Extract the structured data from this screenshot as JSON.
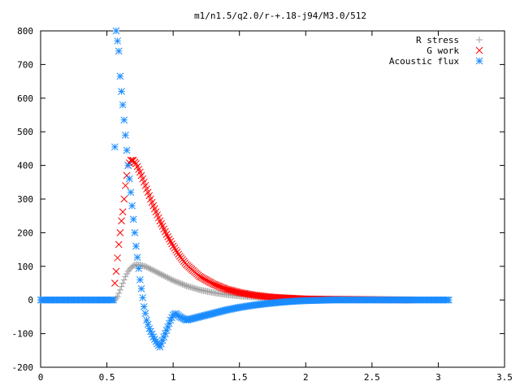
{
  "chart_data": {
    "type": "scatter",
    "title": "m1/n1.5/q2.0/r-+.18-j94/M3.0/512",
    "xlabel": "",
    "ylabel": "",
    "xlim": [
      0,
      3.5
    ],
    "ylim": [
      -200,
      800
    ],
    "x_ticks": [
      "0",
      "0.5",
      "1",
      "1.5",
      "2",
      "2.5",
      "3",
      "3.5"
    ],
    "y_ticks": [
      "-200",
      "-100",
      "0",
      "100",
      "200",
      "300",
      "400",
      "500",
      "600",
      "700",
      "800"
    ],
    "grid": false,
    "legend_position": "top-right",
    "series": [
      {
        "name": "R stress",
        "marker": "plus",
        "color": "#a0a0a0",
        "x": [
          0.0,
          0.3,
          0.56,
          0.58,
          0.6,
          0.62,
          0.64,
          0.66,
          0.68,
          0.7,
          0.72,
          0.75,
          0.8,
          0.85,
          0.9,
          0.95,
          1.0,
          1.1,
          1.2,
          1.3,
          1.4,
          1.5,
          1.6,
          1.7,
          1.8,
          2.0,
          2.2,
          2.5,
          2.8
        ],
        "y": [
          0,
          0,
          0,
          10,
          30,
          50,
          70,
          85,
          95,
          102,
          105,
          104,
          98,
          88,
          78,
          68,
          58,
          42,
          30,
          22,
          16,
          12,
          9,
          6,
          4,
          2,
          1,
          0.5,
          0
        ]
      },
      {
        "name": "G work",
        "marker": "cross",
        "color": "#ff0000",
        "x": [
          0.56,
          0.57,
          0.58,
          0.59,
          0.6,
          0.61,
          0.62,
          0.63,
          0.64,
          0.65,
          0.66,
          0.68,
          0.7,
          0.72,
          0.75,
          0.8,
          0.85,
          0.9,
          0.95,
          1.0,
          1.05,
          1.1,
          1.2,
          1.3,
          1.4,
          1.5,
          1.6,
          1.7,
          1.8,
          2.0,
          2.2,
          2.5,
          2.8
        ],
        "y": [
          50,
          85,
          125,
          165,
          200,
          235,
          262,
          300,
          340,
          370,
          400,
          415,
          415,
          405,
          380,
          330,
          280,
          235,
          195,
          160,
          130,
          105,
          70,
          48,
          32,
          22,
          15,
          10,
          7,
          3,
          2,
          1,
          0
        ]
      },
      {
        "name": "Acoustic flux",
        "marker": "star",
        "color": "#1a8cff",
        "x": [
          0.0,
          0.3,
          0.55,
          0.56,
          0.57,
          0.58,
          0.59,
          0.6,
          0.61,
          0.62,
          0.63,
          0.64,
          0.65,
          0.66,
          0.67,
          0.68,
          0.7,
          0.72,
          0.75,
          0.78,
          0.8,
          0.82,
          0.85,
          0.88,
          0.9,
          0.92,
          0.95,
          0.98,
          1.0,
          1.02,
          1.05,
          1.1,
          1.2,
          1.3,
          1.4,
          1.5,
          1.6,
          1.7,
          1.8,
          1.9,
          2.0,
          2.2,
          2.4,
          2.6,
          2.8,
          3.0,
          3.08
        ],
        "y": [
          0,
          0,
          0,
          455,
          800,
          770,
          740,
          665,
          620,
          580,
          535,
          490,
          445,
          400,
          360,
          320,
          240,
          160,
          60,
          -20,
          -60,
          -85,
          -110,
          -130,
          -140,
          -120,
          -90,
          -60,
          -45,
          -40,
          -50,
          -60,
          -50,
          -40,
          -30,
          -22,
          -16,
          -11,
          -7,
          -4,
          -2,
          0,
          0,
          0,
          0,
          0,
          0
        ]
      }
    ]
  }
}
